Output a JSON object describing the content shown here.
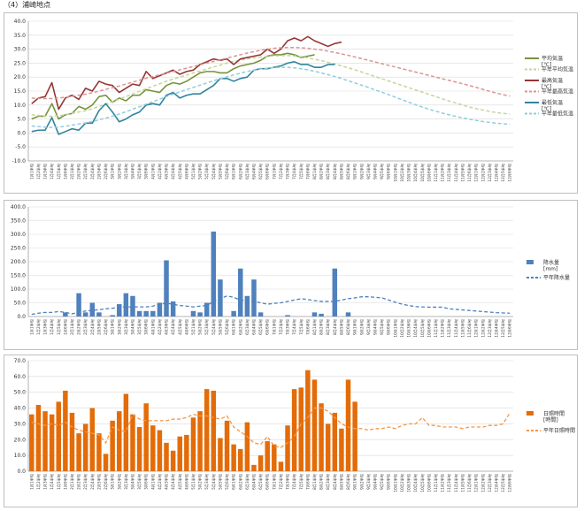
{
  "title": "（4）浦崎地点",
  "months": [
    "1月",
    "2月",
    "3月",
    "4月",
    "5月",
    "6月",
    "7月",
    "8月",
    "9月",
    "10月",
    "11月",
    "12月"
  ],
  "periods": [
    "1半旬",
    "2半旬",
    "3半旬",
    "4半旬",
    "5半旬",
    "6半旬"
  ],
  "chart_data": [
    {
      "type": "line",
      "id": "temp",
      "ylim": [
        -10,
        40
      ],
      "yticks": [
        "-10.0",
        "-5.0",
        "0.0",
        "5.0",
        "10.0",
        "15.0",
        "20.0",
        "25.0",
        "30.0",
        "35.0",
        "40.0"
      ],
      "series": [
        {
          "name": "平均気温[℃]",
          "color": "#77933c",
          "dash": false,
          "values": [
            5.0,
            6.0,
            6.0,
            10.5,
            5.0,
            6.5,
            7.0,
            9.5,
            8.5,
            10.0,
            13.0,
            13.5,
            11.0,
            12.5,
            11.5,
            13.5,
            13.5,
            15.5,
            15.0,
            14.5,
            17.0,
            18.0,
            17.5,
            18.5,
            20.0,
            21.5,
            22.0,
            22.0,
            21.5,
            21.5,
            23.0,
            24.0,
            24.5,
            25.0,
            26.0,
            27.5,
            28.0,
            28.0,
            28.5,
            28.0,
            27.0,
            27.5,
            28.0
          ]
        },
        {
          "name": "平年平均気温",
          "color": "#c3d69b",
          "dash": true,
          "values": [
            6.5,
            6.3,
            6.0,
            6.0,
            6.2,
            6.5,
            7.0,
            7.5,
            8.0,
            8.7,
            9.5,
            10.3,
            11.2,
            12.1,
            13.0,
            14.0,
            14.9,
            15.8,
            16.7,
            17.6,
            18.5,
            19.3,
            20.0,
            20.7,
            21.5,
            22.2,
            22.9,
            23.6,
            24.3,
            25.0,
            25.6,
            26.1,
            26.5,
            26.9,
            27.2,
            27.4,
            27.6,
            27.7,
            27.7,
            27.6,
            27.3,
            26.9,
            26.4,
            25.9,
            25.3,
            24.7,
            24.0,
            23.3,
            22.6,
            21.8,
            21.0,
            20.2,
            19.4,
            18.6,
            17.8,
            17.0,
            16.2,
            15.4,
            14.6,
            13.8,
            13.0,
            12.2,
            11.4,
            10.7,
            10.0,
            9.3,
            8.7,
            8.2,
            7.7,
            7.3,
            7.0,
            6.8
          ]
        },
        {
          "name": "最高気温[℃]",
          "color": "#953735",
          "dash": false,
          "values": [
            10.5,
            12.5,
            13.0,
            18.0,
            8.5,
            12.5,
            13.5,
            12.0,
            16.0,
            15.0,
            18.5,
            17.5,
            17.0,
            14.5,
            16.0,
            17.5,
            17.0,
            22.0,
            19.5,
            20.5,
            21.5,
            22.5,
            21.0,
            22.0,
            22.5,
            24.5,
            25.5,
            26.5,
            26.0,
            26.5,
            24.5,
            26.5,
            27.0,
            27.5,
            28.0,
            30.0,
            28.5,
            30.0,
            33.0,
            34.0,
            33.0,
            34.5,
            33.0,
            32.0,
            31.0,
            32.0,
            32.5
          ]
        },
        {
          "name": "平年最高気温",
          "color": "#d99694",
          "dash": true,
          "values": [
            12.5,
            12.4,
            12.3,
            12.3,
            12.5,
            12.8,
            13.1,
            13.5,
            13.9,
            14.4,
            15.0,
            15.6,
            16.2,
            16.8,
            17.5,
            18.2,
            18.9,
            19.6,
            20.2,
            20.8,
            21.4,
            22.0,
            22.6,
            23.2,
            23.8,
            24.4,
            25.0,
            25.6,
            26.2,
            26.8,
            27.4,
            28.0,
            28.6,
            29.1,
            29.6,
            30.0,
            30.3,
            30.5,
            30.6,
            30.6,
            30.5,
            30.3,
            30.0,
            29.7,
            29.3,
            28.8,
            28.3,
            27.8,
            27.2,
            26.6,
            26.0,
            25.4,
            24.8,
            24.2,
            23.6,
            23.0,
            22.4,
            21.8,
            21.2,
            20.6,
            20.0,
            19.4,
            18.8,
            18.2,
            17.6,
            17.0,
            16.3,
            15.6,
            14.9,
            14.3,
            13.7,
            13.2
          ]
        },
        {
          "name": "最低気温[℃]",
          "color": "#31859c",
          "dash": false,
          "values": [
            0.5,
            1.0,
            1.0,
            5.5,
            -0.5,
            0.5,
            1.5,
            1.0,
            3.5,
            3.5,
            8.0,
            10.5,
            7.5,
            4.0,
            5.0,
            6.5,
            7.5,
            10.0,
            10.5,
            10.0,
            13.5,
            14.5,
            12.5,
            13.5,
            14.0,
            14.0,
            15.5,
            17.0,
            19.5,
            19.5,
            18.5,
            19.5,
            20.0,
            22.5,
            23.0,
            23.0,
            23.5,
            24.0,
            25.0,
            25.5,
            24.5,
            24.5,
            23.5,
            23.5,
            24.5,
            24.5
          ]
        },
        {
          "name": "平年最低気温",
          "color": "#93cddd",
          "dash": true,
          "values": [
            2.5,
            2.3,
            2.1,
            2.0,
            2.1,
            2.4,
            2.8,
            3.2,
            3.6,
            4.1,
            4.7,
            5.3,
            6.0,
            6.8,
            7.6,
            8.5,
            9.4,
            10.3,
            11.2,
            12.1,
            13.0,
            13.9,
            14.7,
            15.5,
            16.3,
            17.1,
            17.9,
            18.7,
            19.4,
            20.1,
            20.8,
            21.4,
            22.0,
            22.5,
            22.9,
            23.2,
            23.4,
            23.5,
            23.5,
            23.3,
            23.0,
            22.6,
            22.1,
            21.5,
            20.9,
            20.2,
            19.5,
            18.7,
            17.9,
            17.1,
            16.3,
            15.4,
            14.6,
            13.7,
            12.8,
            11.9,
            11.0,
            10.1,
            9.3,
            8.5,
            7.8,
            7.1,
            6.5,
            5.9,
            5.4,
            4.9,
            4.5,
            4.1,
            3.8,
            3.5,
            3.3,
            3.1
          ]
        }
      ]
    },
    {
      "type": "bar",
      "id": "precip",
      "ylim": [
        0,
        400
      ],
      "yticks": [
        "0.0",
        "50.0",
        "100.0",
        "150.0",
        "200.0",
        "250.0",
        "300.0",
        "350.0",
        "400.0"
      ],
      "bar_series": {
        "name": "降水量[mm]",
        "color": "#4f81bd",
        "values": [
          0,
          0,
          0,
          0,
          0,
          15,
          0,
          85,
          15,
          50,
          15,
          0,
          5,
          45,
          85,
          75,
          20,
          20,
          20,
          50,
          205,
          55,
          0,
          0,
          20,
          15,
          50,
          310,
          135,
          0,
          20,
          175,
          75,
          135,
          15,
          0,
          0,
          0,
          5,
          0,
          0,
          0,
          15,
          10,
          0,
          175,
          0,
          15
        ]
      },
      "line_series": {
        "name": "平年降水量",
        "color": "#4f81bd",
        "dash": true,
        "values": [
          8,
          12,
          15,
          15,
          18,
          15,
          10,
          15,
          20,
          22,
          25,
          28,
          30,
          35,
          35,
          35,
          35,
          35,
          38,
          45,
          48,
          45,
          40,
          38,
          35,
          38,
          40,
          55,
          65,
          75,
          70,
          60,
          58,
          55,
          50,
          45,
          48,
          50,
          55,
          60,
          65,
          62,
          58,
          55,
          55,
          55,
          60,
          65,
          68,
          72,
          72,
          70,
          68,
          60,
          52,
          45,
          40,
          36,
          35,
          34,
          34,
          34,
          28,
          26,
          24,
          22,
          20,
          18,
          16,
          14,
          13,
          12
        ]
      }
    },
    {
      "type": "bar",
      "id": "sunshine",
      "ylim": [
        0,
        70
      ],
      "yticks": [
        "0.0",
        "10.0",
        "20.0",
        "30.0",
        "40.0",
        "50.0",
        "60.0",
        "70.0"
      ],
      "bar_series": {
        "name": "日照時間[時間]",
        "color": "#e36c09",
        "values": [
          36,
          42,
          38,
          36,
          44,
          51,
          37,
          24,
          30,
          40,
          24,
          11,
          32,
          38,
          49,
          36,
          28,
          43,
          29,
          26,
          18,
          13,
          22,
          23,
          34,
          38,
          52,
          51,
          21,
          32,
          17,
          14,
          31,
          4,
          10,
          19,
          17,
          6,
          29,
          52,
          53,
          64,
          58,
          43,
          30,
          37,
          27,
          58,
          44
        ]
      },
      "line_series": {
        "name": "平年日照時間",
        "color": "#f79646",
        "dash": true,
        "values": [
          31,
          30,
          29,
          30,
          29,
          31,
          28,
          26,
          25,
          24,
          23,
          18,
          28,
          26,
          25,
          36,
          33,
          32,
          32,
          32,
          32,
          33,
          33,
          34,
          36,
          35,
          35,
          34,
          33,
          35,
          28,
          25,
          22,
          18,
          17,
          22,
          16,
          15,
          18,
          22,
          30,
          34,
          40,
          40,
          38,
          34,
          30,
          28,
          27,
          27,
          26,
          27,
          27,
          28,
          27,
          29,
          30,
          30,
          34,
          29,
          29,
          28,
          28,
          28,
          27,
          28,
          28,
          28,
          29,
          29,
          30,
          37
        ]
      }
    }
  ]
}
